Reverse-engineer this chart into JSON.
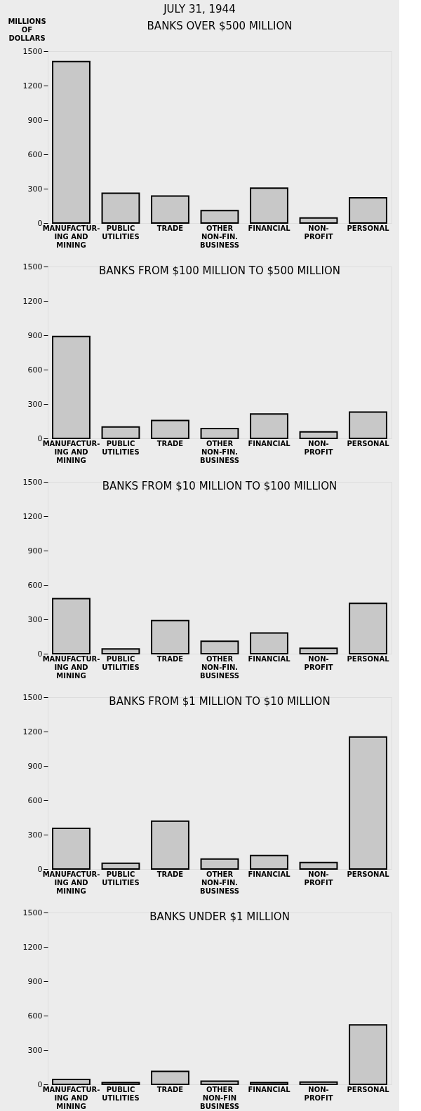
{
  "chart_data": [
    {
      "type": "bar",
      "title": "BANKS  OVER $500 MILLION",
      "ylabel": "MILLIONS\nOF\nDOLLARS",
      "annotations": [
        "JULY 31, 1944"
      ],
      "categories": [
        "MANUFACTUR-\nING AND\nMINING",
        "PUBLIC\nUTILITIES",
        "TRADE",
        "OTHER\nNON-FIN.\nBUSINESS",
        "FINANCIAL",
        "NON-\nPROFIT",
        "PERSONAL"
      ],
      "values": [
        1410,
        260,
        236,
        109,
        304,
        45,
        220
      ],
      "color": "#c8c8c8",
      "ylim": [
        0,
        1500
      ],
      "yticks": [
        0,
        300,
        600,
        900,
        1200,
        1500
      ],
      "grid": false
    },
    {
      "type": "bar",
      "title": "BANKS  FROM $100 MILLION TO $500 MILLION",
      "categories": [
        "MANUFACTUR-\nING AND\nMINING",
        "PUBLIC\nUTILITIES",
        "TRADE",
        "OTHER\nNON-FIN.\nBUSINESS",
        "FINANCIAL",
        "NON-\nPROFIT",
        "PERSONAL"
      ],
      "values": [
        890,
        100,
        156,
        86,
        212,
        56,
        230
      ],
      "color": "#c8c8c8",
      "ylim": [
        0,
        1500
      ],
      "yticks": [
        0,
        300,
        600,
        900,
        1200,
        1500
      ],
      "grid": false
    },
    {
      "type": "bar",
      "title": "BANKS  FROM $10 MILLION TO $100 MILLION",
      "categories": [
        "MANUFACTUR-\nING AND\nMINING",
        "PUBLIC\nUTILITIES",
        "TRADE",
        "OTHER\nNON-FIN.\nBUSINESS",
        "FINANCIAL",
        "NON-\nPROFIT",
        "PERSONAL"
      ],
      "values": [
        480,
        41,
        290,
        109,
        181,
        47,
        439
      ],
      "color": "#c8c8c8",
      "ylim": [
        0,
        1500
      ],
      "yticks": [
        0,
        300,
        600,
        900,
        1200,
        1500
      ],
      "grid": false
    },
    {
      "type": "bar",
      "title": "BANKS  FROM $1 MILLION TO $10 MILLION",
      "categories": [
        "MANUFACTUR-\nING AND\nMINING",
        "PUBLIC\nUTILITIES",
        "TRADE",
        "OTHER\nNON-FIN.\nBUSINESS",
        "FINANCIAL",
        "NON-\nPROFIT",
        "PERSONAL"
      ],
      "values": [
        355,
        51,
        418,
        88,
        118,
        56,
        1153
      ],
      "color": "#c8c8c8",
      "ylim": [
        0,
        1500
      ],
      "yticks": [
        0,
        300,
        600,
        900,
        1200,
        1500
      ],
      "grid": false
    },
    {
      "type": "bar",
      "title": "BANKS  UNDER $1 MILLION",
      "categories": [
        "MANUFACTUR-\nING AND\nMINING",
        "PUBLIC\nUTILITIES",
        "TRADE",
        "OTHER\nNON-FIN\nBUSINESS",
        "FINANCIAL",
        "NON-\nPROFIT",
        "PERSONAL"
      ],
      "values": [
        43,
        16,
        113,
        27,
        16,
        20,
        519
      ],
      "color": "#c8c8c8",
      "ylim": [
        0,
        1500
      ],
      "yticks": [
        0,
        300,
        600,
        900,
        1200,
        1500
      ],
      "grid": false
    }
  ]
}
